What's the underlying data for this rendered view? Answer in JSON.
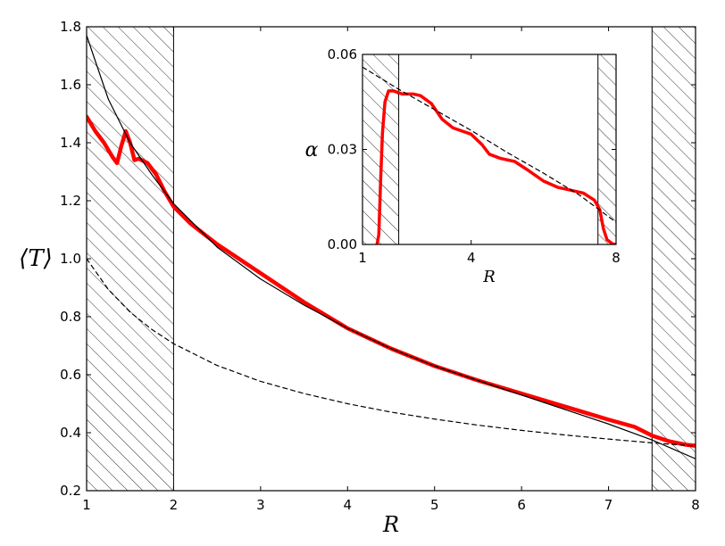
{
  "chart_data": [
    {
      "type": "line",
      "xlabel": "R",
      "ylabel": "⟨T⟩",
      "xlim": [
        1,
        8
      ],
      "ylim": [
        0.2,
        1.8
      ],
      "x_ticks": [
        "1",
        "2",
        "3",
        "4",
        "5",
        "6",
        "7",
        "8"
      ],
      "y_ticks": [
        "0.2",
        "0.4",
        "0.6",
        "0.8",
        "1.0",
        "1.2",
        "1.4",
        "1.6",
        "1.8"
      ],
      "grid": false,
      "excluded_regions": [
        [
          1,
          2
        ],
        [
          7.5,
          8
        ]
      ],
      "series": [
        {
          "style": "thick red solid",
          "color": "#ff0000",
          "points": [
            [
              1.0,
              1.49
            ],
            [
              1.1,
              1.44
            ],
            [
              1.2,
              1.4
            ],
            [
              1.3,
              1.35
            ],
            [
              1.35,
              1.33
            ],
            [
              1.4,
              1.39
            ],
            [
              1.45,
              1.44
            ],
            [
              1.5,
              1.4
            ],
            [
              1.55,
              1.34
            ],
            [
              1.6,
              1.345
            ],
            [
              1.7,
              1.33
            ],
            [
              1.8,
              1.29
            ],
            [
              1.9,
              1.23
            ],
            [
              2.0,
              1.18
            ],
            [
              2.2,
              1.12
            ],
            [
              2.5,
              1.05
            ],
            [
              3.0,
              0.95
            ],
            [
              3.5,
              0.85
            ],
            [
              4.0,
              0.76
            ],
            [
              4.5,
              0.69
            ],
            [
              5.0,
              0.63
            ],
            [
              5.5,
              0.58
            ],
            [
              6.0,
              0.535
            ],
            [
              6.5,
              0.49
            ],
            [
              7.0,
              0.445
            ],
            [
              7.3,
              0.42
            ],
            [
              7.5,
              0.39
            ],
            [
              7.7,
              0.37
            ],
            [
              7.9,
              0.358
            ],
            [
              8.0,
              0.355
            ]
          ]
        },
        {
          "style": "thin black solid",
          "color": "#000000",
          "points": [
            [
              1.0,
              1.77
            ],
            [
              1.25,
              1.55
            ],
            [
              1.5,
              1.4
            ],
            [
              1.75,
              1.29
            ],
            [
              2.0,
              1.19
            ],
            [
              2.5,
              1.04
            ],
            [
              3.0,
              0.93
            ],
            [
              3.5,
              0.84
            ],
            [
              4.0,
              0.76
            ],
            [
              4.5,
              0.69
            ],
            [
              5.0,
              0.63
            ],
            [
              5.5,
              0.58
            ],
            [
              6.0,
              0.53
            ],
            [
              6.5,
              0.48
            ],
            [
              7.0,
              0.43
            ],
            [
              7.5,
              0.375
            ],
            [
              8.0,
              0.31
            ]
          ]
        },
        {
          "style": "thin black dashed",
          "color": "#000000",
          "points": [
            [
              1.0,
              1.0
            ],
            [
              1.25,
              0.894
            ],
            [
              1.5,
              0.816
            ],
            [
              1.75,
              0.756
            ],
            [
              2.0,
              0.707
            ],
            [
              2.5,
              0.632
            ],
            [
              3.0,
              0.577
            ],
            [
              3.5,
              0.535
            ],
            [
              4.0,
              0.5
            ],
            [
              4.5,
              0.471
            ],
            [
              5.0,
              0.447
            ],
            [
              5.5,
              0.426
            ],
            [
              6.0,
              0.408
            ],
            [
              6.5,
              0.392
            ],
            [
              7.0,
              0.378
            ],
            [
              7.5,
              0.365
            ],
            [
              8.0,
              0.354
            ]
          ]
        }
      ]
    },
    {
      "type": "line",
      "inset": true,
      "xlabel": "R",
      "ylabel": "α",
      "xlim": [
        1,
        8
      ],
      "ylim": [
        0,
        0.06
      ],
      "x_ticks": [
        "1",
        "4",
        "8"
      ],
      "y_ticks": [
        "0.00",
        "0.03",
        "0.06"
      ],
      "grid": false,
      "excluded_regions": [
        [
          1,
          2
        ],
        [
          7.5,
          8
        ]
      ],
      "series": [
        {
          "style": "thick red solid",
          "color": "#ff0000",
          "points": [
            [
              1.4,
              0.0
            ],
            [
              1.45,
              0.003
            ],
            [
              1.5,
              0.02
            ],
            [
              1.55,
              0.035
            ],
            [
              1.62,
              0.045
            ],
            [
              1.72,
              0.0485
            ],
            [
              1.85,
              0.0485
            ],
            [
              2.1,
              0.0475
            ],
            [
              2.4,
              0.0475
            ],
            [
              2.6,
              0.047
            ],
            [
              2.9,
              0.0445
            ],
            [
              3.2,
              0.0395
            ],
            [
              3.5,
              0.0368
            ],
            [
              4.0,
              0.0348
            ],
            [
              4.3,
              0.0315
            ],
            [
              4.5,
              0.0285
            ],
            [
              4.8,
              0.0272
            ],
            [
              5.2,
              0.0262
            ],
            [
              5.6,
              0.0232
            ],
            [
              6.0,
              0.02
            ],
            [
              6.4,
              0.018
            ],
            [
              6.8,
              0.017
            ],
            [
              7.1,
              0.0162
            ],
            [
              7.4,
              0.014
            ],
            [
              7.55,
              0.011
            ],
            [
              7.65,
              0.005
            ],
            [
              7.75,
              0.0015
            ],
            [
              7.9,
              0.0002
            ],
            [
              8.0,
              0.0
            ]
          ]
        },
        {
          "style": "thin black dashed",
          "color": "#000000",
          "points": [
            [
              1.0,
              0.056
            ],
            [
              2.0,
              0.049
            ],
            [
              3.0,
              0.0425
            ],
            [
              4.0,
              0.036
            ],
            [
              5.0,
              0.029
            ],
            [
              6.0,
              0.0225
            ],
            [
              7.0,
              0.0155
            ],
            [
              8.0,
              0.007
            ]
          ]
        }
      ]
    }
  ]
}
